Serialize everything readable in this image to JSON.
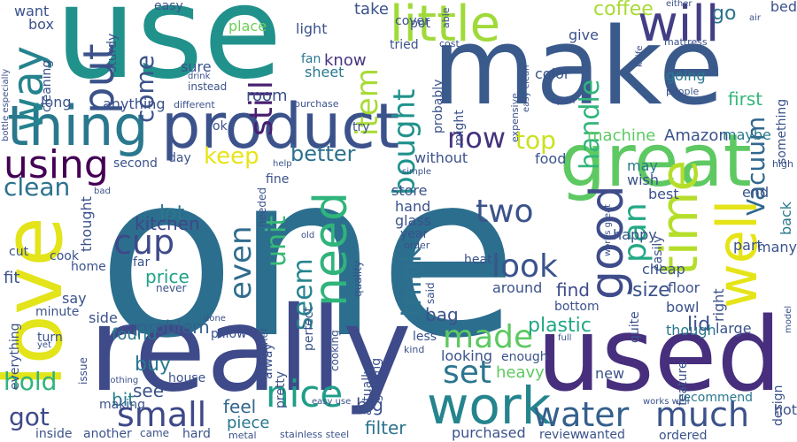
{
  "words": [
    {
      "text": "one",
      "color": "#2c6e8e",
      "rotate": false
    },
    {
      "text": "use",
      "color": "#21918c",
      "rotate": false
    },
    {
      "text": "make",
      "color": "#3a5a8c",
      "rotate": false
    },
    {
      "text": "really",
      "color": "#3e4a89",
      "rotate": false
    },
    {
      "text": "used",
      "color": "#472f7d",
      "rotate": false
    },
    {
      "text": "love",
      "color": "#e3e419",
      "rotate": true
    },
    {
      "text": "great",
      "color": "#5ec962",
      "rotate": false
    },
    {
      "text": "product",
      "color": "#3b528b",
      "rotate": false
    },
    {
      "text": "thing",
      "color": "#2a788e",
      "rotate": false
    },
    {
      "text": "work",
      "color": "#25848e",
      "rotate": false
    },
    {
      "text": "time",
      "color": "#b5de2b",
      "rotate": true
    },
    {
      "text": "well",
      "color": "#e5e419",
      "rotate": true
    },
    {
      "text": "need",
      "color": "#2fb47c",
      "rotate": true
    },
    {
      "text": "good",
      "color": "#3e4c8a",
      "rotate": true
    },
    {
      "text": "little",
      "color": "#a0da39",
      "rotate": false
    },
    {
      "text": "will",
      "color": "#433e85",
      "rotate": false
    },
    {
      "text": "way",
      "color": "#25838e",
      "rotate": true
    },
    {
      "text": "put",
      "color": "#3b528b",
      "rotate": true
    },
    {
      "text": "using",
      "color": "#440154",
      "rotate": false
    },
    {
      "text": "small",
      "color": "#3e4989",
      "rotate": false
    },
    {
      "text": "water",
      "color": "#34608d",
      "rotate": false
    },
    {
      "text": "much",
      "color": "#3b528b",
      "rotate": false
    },
    {
      "text": "nice",
      "color": "#1f9e89",
      "rotate": false
    },
    {
      "text": "cup",
      "color": "#3e4989",
      "rotate": false
    },
    {
      "text": "look",
      "color": "#3a548c",
      "rotate": false
    },
    {
      "text": "made",
      "color": "#5ec962",
      "rotate": false
    },
    {
      "text": "set",
      "color": "#2b758e",
      "rotate": false
    },
    {
      "text": "two",
      "color": "#3b528b",
      "rotate": false
    },
    {
      "text": "now",
      "color": "#46337e",
      "rotate": false
    },
    {
      "text": "still",
      "color": "#481f70",
      "rotate": true
    },
    {
      "text": "bought",
      "color": "#20928c",
      "rotate": true
    },
    {
      "text": "item",
      "color": "#a8db34",
      "rotate": true
    },
    {
      "text": "think",
      "color": "#2c718e",
      "rotate": true
    },
    {
      "text": "pan",
      "color": "#22a884",
      "rotate": true
    },
    {
      "text": "handle",
      "color": "#31b57b",
      "rotate": true
    },
    {
      "text": "even",
      "color": "#2f6c8e",
      "rotate": true
    },
    {
      "text": "unit",
      "color": "#38b977",
      "rotate": true
    },
    {
      "text": "seem",
      "color": "#25848e",
      "rotate": true
    },
    {
      "text": "clean",
      "color": "#2c728e",
      "rotate": false
    },
    {
      "text": "keep",
      "color": "#e7e419",
      "rotate": false
    },
    {
      "text": "better",
      "color": "#2d718e",
      "rotate": false
    },
    {
      "text": "come",
      "color": "#3b528b",
      "rotate": true
    },
    {
      "text": "top",
      "color": "#cae11f",
      "rotate": false
    },
    {
      "text": "hold",
      "color": "#2fb47c",
      "rotate": false
    },
    {
      "text": "got",
      "color": "#3e4989",
      "rotate": false
    },
    {
      "text": "Vacuum",
      "color": "#31688e",
      "rotate": true
    },
    {
      "text": "kitchen",
      "color": "#3f4788",
      "rotate": false
    },
    {
      "text": "lot",
      "color": "#2a788e",
      "rotate": false
    },
    {
      "text": "price",
      "color": "#1fa187",
      "rotate": false
    },
    {
      "text": "problem",
      "color": "#33628d",
      "rotate": false
    },
    {
      "text": "found",
      "color": "#2a788e",
      "rotate": false
    },
    {
      "text": "buy",
      "color": "#2a788e",
      "rotate": false
    },
    {
      "text": "see",
      "color": "#3b528b",
      "rotate": false
    },
    {
      "text": "bit",
      "color": "#26828e",
      "rotate": false
    },
    {
      "text": "feel",
      "color": "#31678e",
      "rotate": false
    },
    {
      "text": "piece",
      "color": "#2a788e",
      "rotate": false
    },
    {
      "text": "size",
      "color": "#3b528b",
      "rotate": false
    },
    {
      "text": "find",
      "color": "#3e4989",
      "rotate": false
    },
    {
      "text": "lid",
      "color": "#3b528b",
      "rotate": false
    },
    {
      "text": "bag",
      "color": "#3b528b",
      "rotate": false
    },
    {
      "text": "plastic",
      "color": "#22a884",
      "rotate": false
    },
    {
      "text": "filter",
      "color": "#2c728e",
      "rotate": false
    },
    {
      "text": "big",
      "color": "#3b528b",
      "rotate": false
    },
    {
      "text": "coffee",
      "color": "#a8db34",
      "rotate": false
    },
    {
      "text": "go",
      "color": "#2c728e",
      "rotate": false
    },
    {
      "text": "first",
      "color": "#35b779",
      "rotate": false
    },
    {
      "text": "Amazon",
      "color": "#3b528b",
      "rotate": false
    },
    {
      "text": "machine",
      "color": "#5ec962",
      "rotate": false
    },
    {
      "text": "room",
      "color": "#3b528b",
      "rotate": false
    },
    {
      "text": "know",
      "color": "#46337e",
      "rotate": false
    },
    {
      "text": "take",
      "color": "#3b528b",
      "rotate": false
    },
    {
      "text": "light",
      "color": "#3b528b",
      "rotate": false
    },
    {
      "text": "sheet",
      "color": "#2a788e",
      "rotate": false
    },
    {
      "text": "fan",
      "color": "#2a788e",
      "rotate": false
    },
    {
      "text": "sure",
      "color": "#3b528b",
      "rotate": false
    },
    {
      "text": "place",
      "color": "#6ece58",
      "rotate": false
    },
    {
      "text": "want",
      "color": "#3b528b",
      "rotate": false
    },
    {
      "text": "box",
      "color": "#3b528b",
      "rotate": false
    },
    {
      "text": "long",
      "color": "#3b528b",
      "rotate": false
    },
    {
      "text": "anything",
      "color": "#3b528b",
      "rotate": false
    },
    {
      "text": "easy",
      "color": "#3b528b",
      "rotate": false
    },
    {
      "text": "color",
      "color": "#3b528b",
      "rotate": false
    },
    {
      "text": "give",
      "color": "#3b528b",
      "rotate": false
    },
    {
      "text": "going",
      "color": "#2a788e",
      "rotate": false
    },
    {
      "text": "bed",
      "color": "#3b528b",
      "rotate": false
    },
    {
      "text": "maybe",
      "color": "#2a788e",
      "rotate": false
    },
    {
      "text": "without",
      "color": "#3b528b",
      "rotate": false
    },
    {
      "text": "food",
      "color": "#3b528b",
      "rotate": false
    },
    {
      "text": "may",
      "color": "#2a788e",
      "rotate": false
    },
    {
      "text": "wish",
      "color": "#3b528b",
      "rotate": false
    },
    {
      "text": "best",
      "color": "#3b528b",
      "rotate": false
    },
    {
      "text": "back",
      "color": "#2a788e",
      "rotate": true
    },
    {
      "text": "end",
      "color": "#3b528b",
      "rotate": false
    },
    {
      "text": "part",
      "color": "#3b528b",
      "rotate": false
    },
    {
      "text": "happy",
      "color": "#3b528b",
      "rotate": false
    },
    {
      "text": "cheap",
      "color": "#3b528b",
      "rotate": false
    },
    {
      "text": "floor",
      "color": "#3b528b",
      "rotate": false
    },
    {
      "text": "many",
      "color": "#3b528b",
      "rotate": false
    },
    {
      "text": "hot",
      "color": "#3b528b",
      "rotate": false
    },
    {
      "text": "large",
      "color": "#3b528b",
      "rotate": false
    },
    {
      "text": "bowl",
      "color": "#3b528b",
      "rotate": false
    },
    {
      "text": "though",
      "color": "#2a788e",
      "rotate": false
    },
    {
      "text": "recommend",
      "color": "#2a788e",
      "rotate": false
    },
    {
      "text": "ordered",
      "color": "#3b528b",
      "rotate": false
    },
    {
      "text": "wanted",
      "color": "#3b528b",
      "rotate": false
    },
    {
      "text": "review",
      "color": "#3b528b",
      "rotate": false
    },
    {
      "text": "purchased",
      "color": "#3b528b",
      "rotate": false
    },
    {
      "text": "new",
      "color": "#3b528b",
      "rotate": false
    },
    {
      "text": "enough",
      "color": "#3b528b",
      "rotate": false
    },
    {
      "text": "heavy",
      "color": "#5ec962",
      "rotate": false
    },
    {
      "text": "looking",
      "color": "#3b528b",
      "rotate": false
    },
    {
      "text": "less",
      "color": "#3b528b",
      "rotate": false
    },
    {
      "text": "around",
      "color": "#3b528b",
      "rotate": false
    },
    {
      "text": "heat",
      "color": "#3b528b",
      "rotate": false
    },
    {
      "text": "glass",
      "color": "#3b528b",
      "rotate": false
    },
    {
      "text": "hand",
      "color": "#3b528b",
      "rotate": false
    },
    {
      "text": "store",
      "color": "#3b528b",
      "rotate": false
    },
    {
      "text": "fine",
      "color": "#3b528b",
      "rotate": false
    },
    {
      "text": "try",
      "color": "#3b528b",
      "rotate": false
    },
    {
      "text": "ok",
      "color": "#3b528b",
      "rotate": false
    },
    {
      "text": "day",
      "color": "#3b528b",
      "rotate": false
    },
    {
      "text": "second",
      "color": "#3b528b",
      "rotate": false
    },
    {
      "text": "cook",
      "color": "#3b528b",
      "rotate": false
    },
    {
      "text": "home",
      "color": "#3b528b",
      "rotate": false
    },
    {
      "text": "fit",
      "color": "#3b528b",
      "rotate": false
    },
    {
      "text": "say",
      "color": "#3b528b",
      "rotate": false
    },
    {
      "text": "side",
      "color": "#3b528b",
      "rotate": false
    },
    {
      "text": "minute",
      "color": "#3b528b",
      "rotate": false
    },
    {
      "text": "turn",
      "color": "#3b528b",
      "rotate": false
    },
    {
      "text": "pillow",
      "color": "#3b528b",
      "rotate": false
    },
    {
      "text": "house",
      "color": "#3b528b",
      "rotate": false
    },
    {
      "text": "making",
      "color": "#3b528b",
      "rotate": false
    },
    {
      "text": "inside",
      "color": "#3b528b",
      "rotate": false
    },
    {
      "text": "another",
      "color": "#3b528b",
      "rotate": false
    },
    {
      "text": "came",
      "color": "#3b528b",
      "rotate": false
    },
    {
      "text": "hard",
      "color": "#3b528b",
      "rotate": false
    },
    {
      "text": "metal",
      "color": "#3b528b",
      "rotate": false
    },
    {
      "text": "stainless steel",
      "color": "#3b528b",
      "rotate": false
    },
    {
      "text": "easy use",
      "color": "#3b528b",
      "rotate": false
    },
    {
      "text": "works well",
      "color": "#3b528b",
      "rotate": false
    },
    {
      "text": "cover",
      "color": "#3b528b",
      "rotate": false
    },
    {
      "text": "pot",
      "color": "#3b528b",
      "rotate": false
    },
    {
      "text": "tried",
      "color": "#3b528b",
      "rotate": false
    },
    {
      "text": "cost",
      "color": "#3b528b",
      "rotate": false
    },
    {
      "text": "instead",
      "color": "#3b528b",
      "rotate": false
    },
    {
      "text": "drink",
      "color": "#3b528b",
      "rotate": false
    },
    {
      "text": "different",
      "color": "#3b528b",
      "rotate": false
    },
    {
      "text": "purchase",
      "color": "#3b528b",
      "rotate": false
    },
    {
      "text": "help",
      "color": "#3b528b",
      "rotate": false
    },
    {
      "text": "needed",
      "color": "#3b528b",
      "rotate": true
    },
    {
      "text": "container",
      "color": "#3b528b",
      "rotate": true
    },
    {
      "text": "cooking",
      "color": "#3b528b",
      "rotate": true
    },
    {
      "text": "quality",
      "color": "#3b528b",
      "rotate": true
    },
    {
      "text": "perfect",
      "color": "#3b528b",
      "rotate": true
    },
    {
      "text": "pretty",
      "color": "#3b528b",
      "rotate": true
    },
    {
      "text": "actually",
      "color": "#3b528b",
      "rotate": true
    },
    {
      "text": "getting",
      "color": "#3b528b",
      "rotate": true
    },
    {
      "text": "alway",
      "color": "#3b528b",
      "rotate": true
    },
    {
      "text": "said",
      "color": "#3b528b",
      "rotate": true
    },
    {
      "text": "year",
      "color": "#3b528b",
      "rotate": false
    },
    {
      "text": "order",
      "color": "#3b528b",
      "rotate": false
    },
    {
      "text": "old",
      "color": "#3b528b",
      "rotate": false
    },
    {
      "text": "simple",
      "color": "#3b528b",
      "rotate": false
    },
    {
      "text": "done",
      "color": "#3b528b",
      "rotate": false
    },
    {
      "text": "full",
      "color": "#3b528b",
      "rotate": false
    },
    {
      "text": "kind",
      "color": "#3b528b",
      "rotate": false
    },
    {
      "text": "issue",
      "color": "#3b528b",
      "rotate": true
    },
    {
      "text": "nothing",
      "color": "#3b528b",
      "rotate": false
    },
    {
      "text": "yet",
      "color": "#3b528b",
      "rotate": false
    },
    {
      "text": "never",
      "color": "#3b528b",
      "rotate": false
    },
    {
      "text": "far",
      "color": "#3b528b",
      "rotate": false
    },
    {
      "text": "cut",
      "color": "#3b528b",
      "rotate": false
    },
    {
      "text": "bad",
      "color": "#3b528b",
      "rotate": false
    },
    {
      "text": "thought",
      "color": "#3b528b",
      "rotate": true
    },
    {
      "text": "everything",
      "color": "#3b528b",
      "rotate": true
    },
    {
      "text": "cleaning",
      "color": "#3b528b",
      "rotate": true
    },
    {
      "text": "sturdy",
      "color": "#3b528b",
      "rotate": true
    },
    {
      "text": "bottle especially",
      "color": "#3b528b",
      "rotate": true
    },
    {
      "text": "probably",
      "color": "#3b528b",
      "rotate": true
    },
    {
      "text": "might",
      "color": "#3b528b",
      "rotate": true
    },
    {
      "text": "expensive",
      "color": "#3b528b",
      "rotate": true
    },
    {
      "text": "able",
      "color": "#3b528b",
      "rotate": true
    },
    {
      "text": "easy clean",
      "color": "#3b528b",
      "rotate": true
    },
    {
      "text": "knife",
      "color": "#3b528b",
      "rotate": true
    },
    {
      "text": "either",
      "color": "#3b528b",
      "rotate": false
    },
    {
      "text": "air",
      "color": "#3b528b",
      "rotate": false
    },
    {
      "text": "mattress",
      "color": "#3b528b",
      "rotate": false
    },
    {
      "text": "people",
      "color": "#3b528b",
      "rotate": false
    },
    {
      "text": "open",
      "color": "#3b528b",
      "rotate": false
    },
    {
      "text": "something",
      "color": "#3b528b",
      "rotate": true
    },
    {
      "text": "high",
      "color": "#3b528b",
      "rotate": false
    },
    {
      "text": "works great",
      "color": "#3b528b",
      "rotate": true
    },
    {
      "text": "easily",
      "color": "#3b528b",
      "rotate": true
    },
    {
      "text": "right",
      "color": "#3b528b",
      "rotate": true
    },
    {
      "text": "quite",
      "color": "#3b528b",
      "rotate": true
    },
    {
      "text": "bottom",
      "color": "#3b528b",
      "rotate": false
    },
    {
      "text": "feature",
      "color": "#3b528b",
      "rotate": true
    },
    {
      "text": "design",
      "color": "#3b528b",
      "rotate": true
    },
    {
      "text": "model",
      "color": "#3b528b",
      "rotate": true
    }
  ]
}
